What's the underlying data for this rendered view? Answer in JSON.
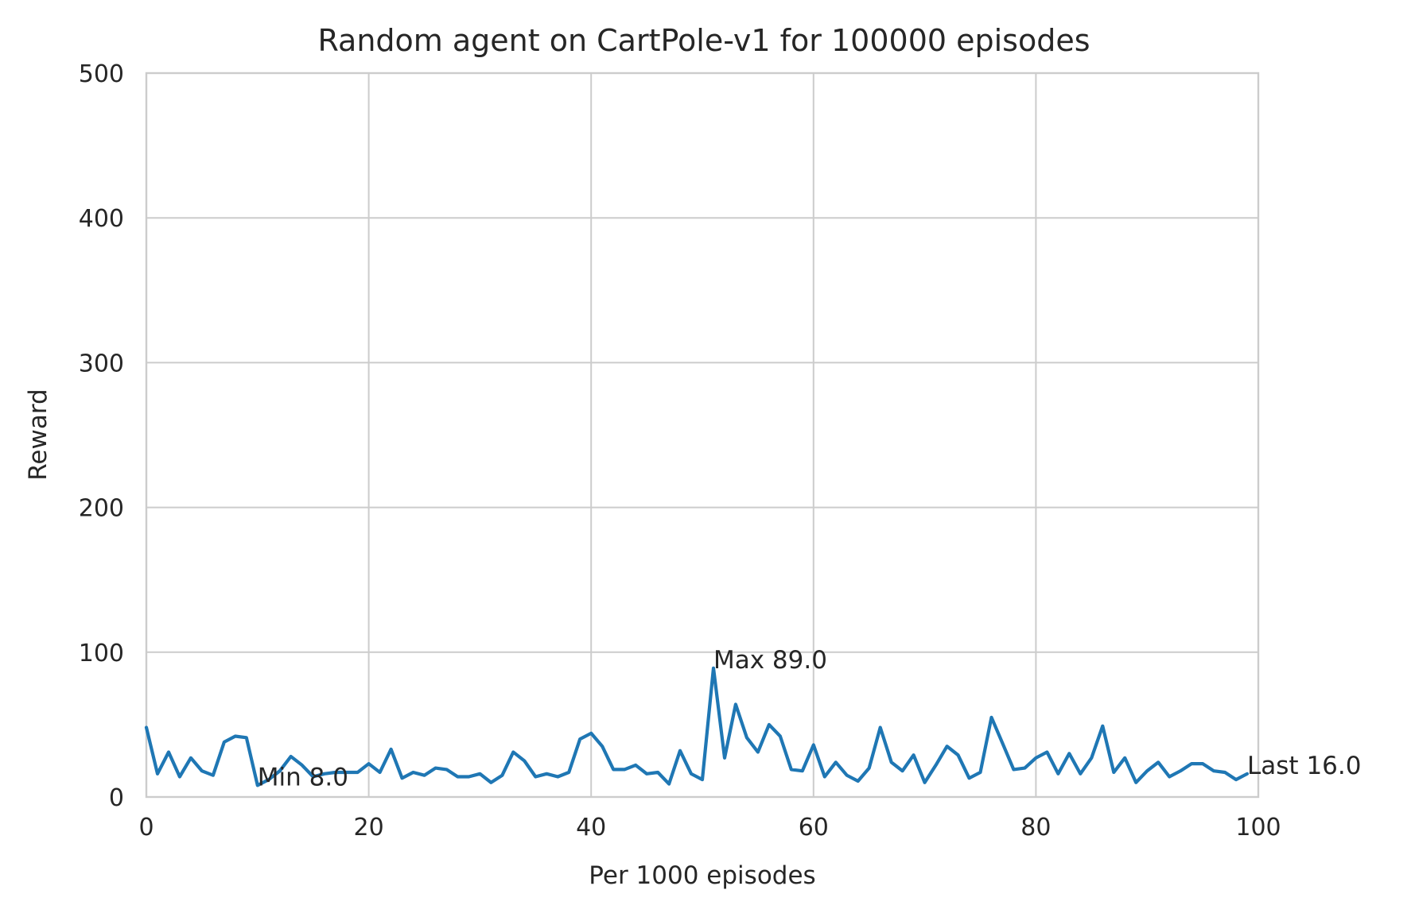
{
  "chart_data": {
    "type": "line",
    "title": "Random agent on CartPole-v1 for 100000 episodes",
    "xlabel": "Per 1000 episodes",
    "ylabel": "Reward",
    "xlim": [
      0,
      100
    ],
    "ylim": [
      0,
      500
    ],
    "xticks": [
      "0",
      "20",
      "40",
      "60",
      "80",
      "100"
    ],
    "yticks": [
      "0",
      "100",
      "200",
      "300",
      "400",
      "500"
    ],
    "grid": true,
    "legend": "none",
    "series": [
      {
        "color": "#1f77b4",
        "x": [
          0,
          1,
          2,
          3,
          4,
          5,
          6,
          7,
          8,
          9,
          10,
          11,
          12,
          13,
          14,
          15,
          16,
          17,
          18,
          19,
          20,
          21,
          22,
          23,
          24,
          25,
          26,
          27,
          28,
          29,
          30,
          31,
          32,
          33,
          34,
          35,
          36,
          37,
          38,
          39,
          40,
          41,
          42,
          43,
          44,
          45,
          46,
          47,
          48,
          49,
          50,
          51,
          52,
          53,
          54,
          55,
          56,
          57,
          58,
          59,
          60,
          61,
          62,
          63,
          64,
          65,
          66,
          67,
          68,
          69,
          70,
          71,
          72,
          73,
          74,
          75,
          76,
          77,
          78,
          79,
          80,
          81,
          82,
          83,
          84,
          85,
          86,
          87,
          88,
          89,
          90,
          91,
          92,
          93,
          94,
          95,
          96,
          97,
          98,
          99
        ],
        "values": [
          48,
          16,
          31,
          14,
          27,
          18,
          15,
          38,
          42,
          41,
          8,
          12,
          18,
          28,
          22,
          14,
          16,
          17,
          17,
          17,
          23,
          17,
          33,
          13,
          17,
          15,
          20,
          19,
          14,
          14,
          16,
          10,
          15,
          31,
          25,
          14,
          16,
          14,
          17,
          40,
          44,
          35,
          19,
          19,
          22,
          16,
          17,
          9,
          32,
          16,
          12,
          89,
          27,
          64,
          41,
          31,
          50,
          42,
          19,
          18,
          36,
          14,
          24,
          15,
          11,
          20,
          48,
          24,
          18,
          29,
          10,
          22,
          35,
          29,
          13,
          17,
          55,
          37,
          19,
          20,
          27,
          31,
          16,
          30,
          16,
          27,
          49,
          17,
          27,
          10,
          18,
          24,
          14,
          18,
          23,
          23,
          18,
          17,
          12,
          16
        ]
      }
    ],
    "annotations": [
      {
        "text": "Max 89.0",
        "x": 51,
        "y": 89
      },
      {
        "text": "Min 8.0",
        "x": 10,
        "y": 8
      },
      {
        "text": "Last 16.0",
        "x": 99,
        "y": 16
      }
    ]
  }
}
